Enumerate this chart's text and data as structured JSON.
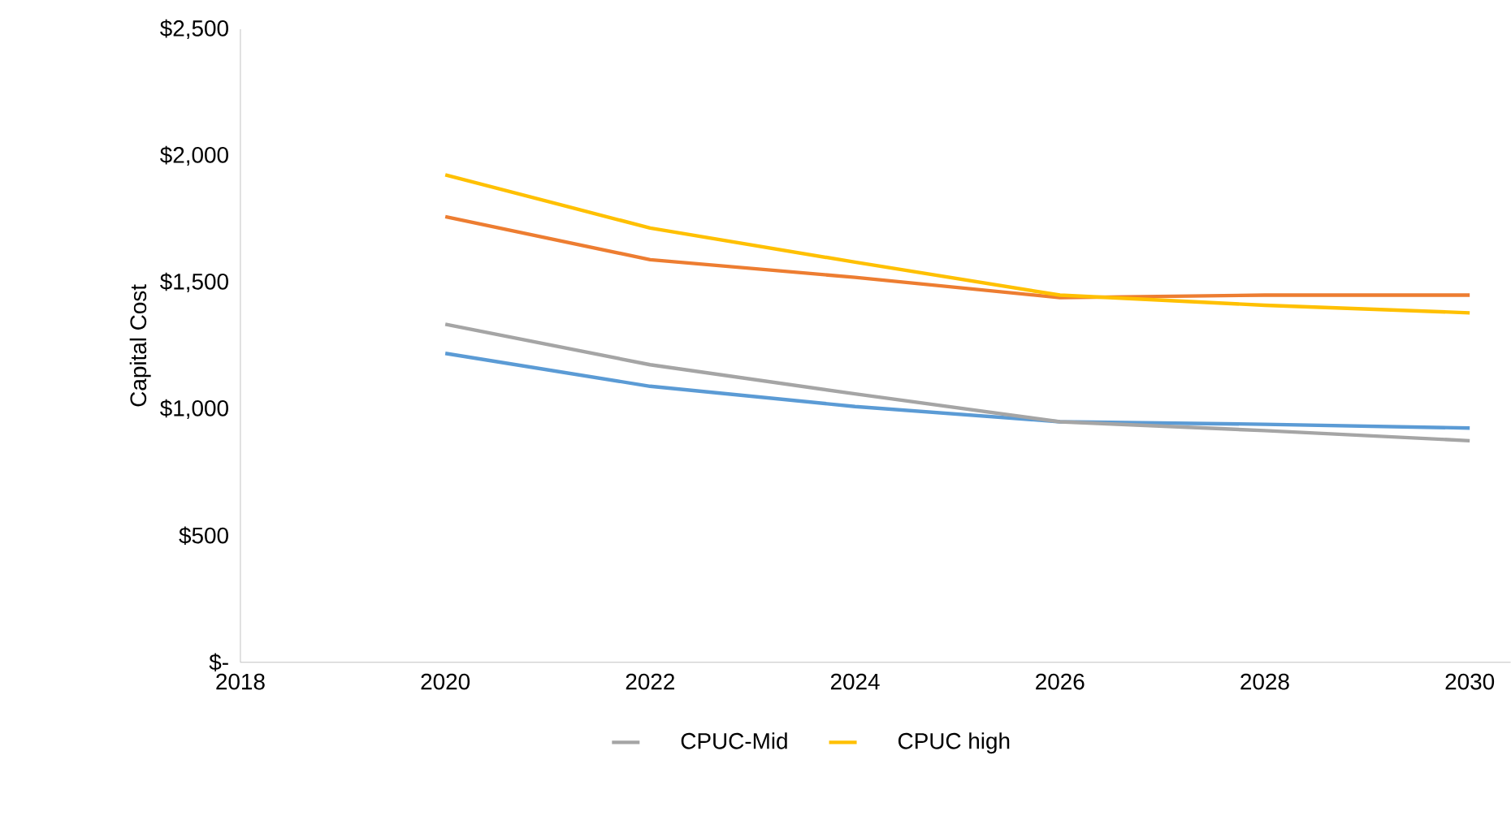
{
  "chart_data": {
    "type": "line",
    "ylabel": "Capital Cost",
    "x": [
      2020,
      2022,
      2024,
      2026,
      2028,
      2030
    ],
    "series": [
      {
        "color": "#5b9bd5",
        "values": [
          1220,
          1090,
          1010,
          950,
          940,
          925
        ]
      },
      {
        "color": "#ed7d31",
        "values": [
          1760,
          1590,
          1520,
          1440,
          1450,
          1450
        ]
      },
      {
        "name": "CPUC-Mid",
        "color": "#a5a5a5",
        "values": [
          1335,
          1175,
          1060,
          950,
          915,
          875
        ]
      },
      {
        "name": "CPUC high",
        "color": "#ffc000",
        "values": [
          1925,
          1715,
          1580,
          1450,
          1410,
          1380
        ]
      }
    ],
    "xlim": [
      2018,
      2030.4
    ],
    "xticks": [
      2018,
      2020,
      2022,
      2024,
      2026,
      2028,
      2030
    ],
    "ylim": [
      0,
      2500
    ],
    "yticks": [
      {
        "value": 0,
        "label": "$-"
      },
      {
        "value": 500,
        "label": "$500"
      },
      {
        "value": 1000,
        "label": "$1,000"
      },
      {
        "value": 1500,
        "label": "$1,500"
      },
      {
        "value": 2000,
        "label": "$2,000"
      },
      {
        "value": 2500,
        "label": "$2,500"
      }
    ],
    "grid": false,
    "legend": "bottom",
    "marker": "none",
    "line_style": "solid"
  }
}
